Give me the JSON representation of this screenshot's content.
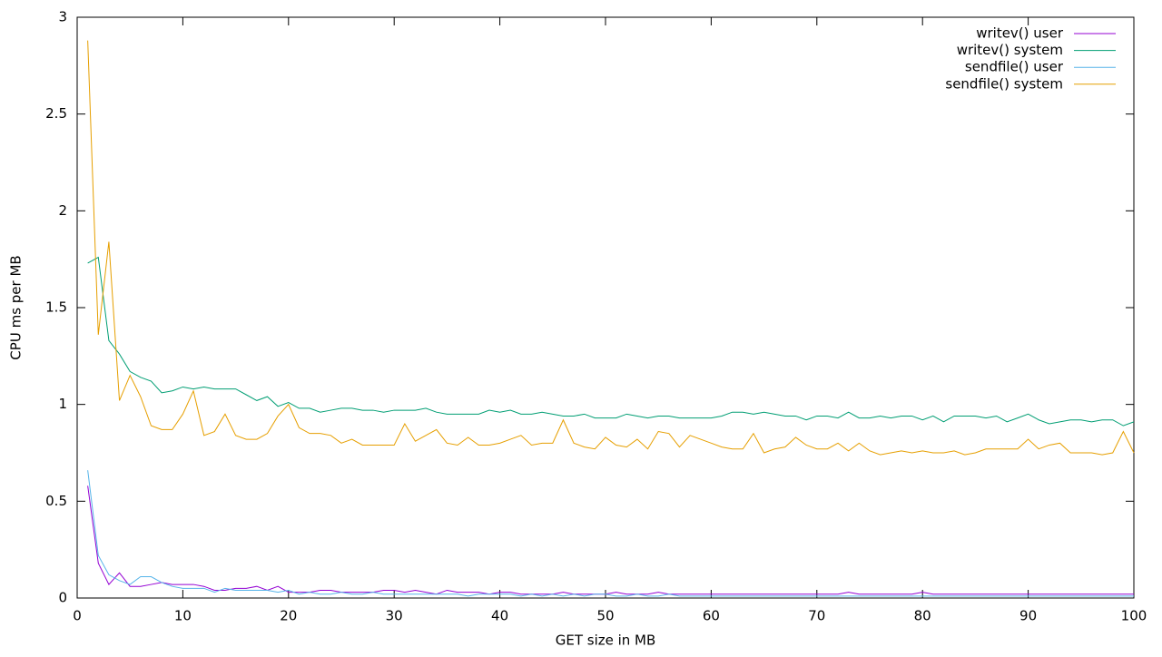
{
  "chart_data": {
    "type": "line",
    "xlabel": "GET size in MB",
    "ylabel": "CPU ms per MB",
    "x": [
      1,
      2,
      3,
      4,
      5,
      6,
      7,
      8,
      9,
      10,
      11,
      12,
      13,
      14,
      15,
      16,
      17,
      18,
      19,
      20,
      21,
      22,
      23,
      24,
      25,
      26,
      27,
      28,
      29,
      30,
      31,
      32,
      33,
      34,
      35,
      36,
      37,
      38,
      39,
      40,
      41,
      42,
      43,
      44,
      45,
      46,
      47,
      48,
      49,
      50,
      51,
      52,
      53,
      54,
      55,
      56,
      57,
      58,
      59,
      60,
      61,
      62,
      63,
      64,
      65,
      66,
      67,
      68,
      69,
      70,
      71,
      72,
      73,
      74,
      75,
      76,
      77,
      78,
      79,
      80,
      81,
      82,
      83,
      84,
      85,
      86,
      87,
      88,
      89,
      90,
      91,
      92,
      93,
      94,
      95,
      96,
      97,
      98,
      99,
      100
    ],
    "series": [
      {
        "name": "writev() user",
        "color": "#9400d3",
        "values": [
          0.58,
          0.18,
          0.07,
          0.13,
          0.06,
          0.06,
          0.07,
          0.08,
          0.07,
          0.07,
          0.07,
          0.06,
          0.04,
          0.04,
          0.05,
          0.05,
          0.06,
          0.04,
          0.06,
          0.03,
          0.03,
          0.03,
          0.04,
          0.04,
          0.03,
          0.03,
          0.03,
          0.03,
          0.04,
          0.04,
          0.03,
          0.04,
          0.03,
          0.02,
          0.04,
          0.03,
          0.03,
          0.03,
          0.02,
          0.03,
          0.03,
          0.02,
          0.02,
          0.02,
          0.02,
          0.03,
          0.02,
          0.02,
          0.02,
          0.02,
          0.03,
          0.02,
          0.02,
          0.02,
          0.03,
          0.02,
          0.02,
          0.02,
          0.02,
          0.02,
          0.02,
          0.02,
          0.02,
          0.02,
          0.02,
          0.02,
          0.02,
          0.02,
          0.02,
          0.02,
          0.02,
          0.02,
          0.03,
          0.02,
          0.02,
          0.02,
          0.02,
          0.02,
          0.02,
          0.03,
          0.02,
          0.02,
          0.02,
          0.02,
          0.02,
          0.02,
          0.02,
          0.02,
          0.02,
          0.02,
          0.02,
          0.02,
          0.02,
          0.02,
          0.02,
          0.02,
          0.02,
          0.02,
          0.02,
          0.02
        ]
      },
      {
        "name": "writev() system",
        "color": "#009e73",
        "values": [
          1.73,
          1.76,
          1.33,
          1.26,
          1.17,
          1.14,
          1.12,
          1.06,
          1.07,
          1.09,
          1.08,
          1.09,
          1.08,
          1.08,
          1.08,
          1.05,
          1.02,
          1.04,
          0.99,
          1.01,
          0.98,
          0.98,
          0.96,
          0.97,
          0.98,
          0.98,
          0.97,
          0.97,
          0.96,
          0.97,
          0.97,
          0.97,
          0.98,
          0.96,
          0.95,
          0.95,
          0.95,
          0.95,
          0.97,
          0.96,
          0.97,
          0.95,
          0.95,
          0.96,
          0.95,
          0.94,
          0.94,
          0.95,
          0.93,
          0.93,
          0.93,
          0.95,
          0.94,
          0.93,
          0.94,
          0.94,
          0.93,
          0.93,
          0.93,
          0.93,
          0.94,
          0.96,
          0.96,
          0.95,
          0.96,
          0.95,
          0.94,
          0.94,
          0.92,
          0.94,
          0.94,
          0.93,
          0.96,
          0.93,
          0.93,
          0.94,
          0.93,
          0.94,
          0.94,
          0.92,
          0.94,
          0.91,
          0.94,
          0.94,
          0.94,
          0.93,
          0.94,
          0.91,
          0.93,
          0.95,
          0.92,
          0.9,
          0.91,
          0.92,
          0.92,
          0.91,
          0.92,
          0.92,
          0.89,
          0.91
        ]
      },
      {
        "name": "sendfile() user",
        "color": "#56b4e9",
        "values": [
          0.66,
          0.22,
          0.12,
          0.09,
          0.07,
          0.11,
          0.11,
          0.08,
          0.06,
          0.05,
          0.05,
          0.05,
          0.03,
          0.05,
          0.04,
          0.04,
          0.04,
          0.04,
          0.03,
          0.04,
          0.02,
          0.03,
          0.02,
          0.02,
          0.03,
          0.02,
          0.02,
          0.03,
          0.02,
          0.02,
          0.02,
          0.02,
          0.02,
          0.02,
          0.02,
          0.02,
          0.01,
          0.02,
          0.02,
          0.02,
          0.02,
          0.01,
          0.02,
          0.01,
          0.02,
          0.01,
          0.02,
          0.01,
          0.02,
          0.02,
          0.01,
          0.01,
          0.02,
          0.01,
          0.01,
          0.02,
          0.01,
          0.01,
          0.01,
          0.01,
          0.01,
          0.01,
          0.01,
          0.01,
          0.01,
          0.01,
          0.01,
          0.01,
          0.01,
          0.01,
          0.01,
          0.01,
          0.01,
          0.01,
          0.01,
          0.01,
          0.01,
          0.01,
          0.01,
          0.01,
          0.01,
          0.01,
          0.01,
          0.01,
          0.01,
          0.01,
          0.01,
          0.01,
          0.01,
          0.01,
          0.01,
          0.01,
          0.01,
          0.01,
          0.01,
          0.01,
          0.01,
          0.01,
          0.01,
          0.01
        ]
      },
      {
        "name": "sendfile() system",
        "color": "#e69f00",
        "values": [
          2.88,
          1.36,
          1.84,
          1.02,
          1.15,
          1.04,
          0.89,
          0.87,
          0.87,
          0.95,
          1.07,
          0.84,
          0.86,
          0.95,
          0.84,
          0.82,
          0.82,
          0.85,
          0.94,
          1.0,
          0.88,
          0.85,
          0.85,
          0.84,
          0.8,
          0.82,
          0.79,
          0.79,
          0.79,
          0.79,
          0.9,
          0.81,
          0.84,
          0.87,
          0.8,
          0.79,
          0.83,
          0.79,
          0.79,
          0.8,
          0.82,
          0.84,
          0.79,
          0.8,
          0.8,
          0.92,
          0.8,
          0.78,
          0.77,
          0.83,
          0.79,
          0.78,
          0.82,
          0.77,
          0.86,
          0.85,
          0.78,
          0.84,
          0.82,
          0.8,
          0.78,
          0.77,
          0.77,
          0.85,
          0.75,
          0.77,
          0.78,
          0.83,
          0.79,
          0.77,
          0.77,
          0.8,
          0.76,
          0.8,
          0.76,
          0.74,
          0.75,
          0.76,
          0.75,
          0.76,
          0.75,
          0.75,
          0.76,
          0.74,
          0.75,
          0.77,
          0.77,
          0.77,
          0.77,
          0.82,
          0.77,
          0.79,
          0.8,
          0.75,
          0.75,
          0.75,
          0.74,
          0.75,
          0.86,
          0.75
        ]
      }
    ],
    "xlim": [
      0,
      100
    ],
    "xticks": [
      0,
      10,
      20,
      30,
      40,
      50,
      60,
      70,
      80,
      90,
      100
    ],
    "ylim": [
      0,
      3
    ],
    "yticks": [
      0,
      0.5,
      1,
      1.5,
      2,
      2.5,
      3
    ],
    "legend": "top-right",
    "grid": false
  }
}
